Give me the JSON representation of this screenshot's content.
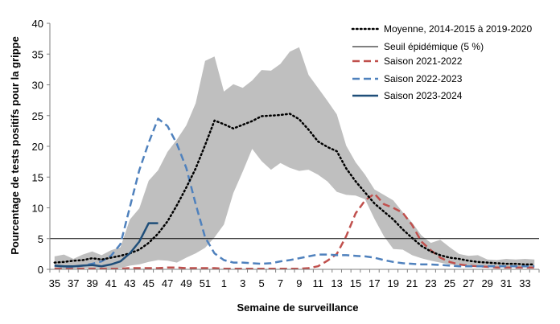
{
  "chart_data": {
    "type": "line",
    "xlabel": "Semaine de surveillance",
    "ylabel": "Pourcentage de tests positifs pour la grippe",
    "ylim": [
      0,
      40
    ],
    "yticks": [
      0,
      5,
      10,
      15,
      20,
      25,
      30,
      35,
      40
    ],
    "weeks": [
      35,
      36,
      37,
      38,
      39,
      40,
      41,
      42,
      43,
      44,
      45,
      46,
      47,
      48,
      49,
      50,
      51,
      52,
      1,
      2,
      3,
      4,
      5,
      6,
      7,
      8,
      9,
      10,
      11,
      12,
      13,
      14,
      15,
      16,
      17,
      18,
      19,
      20,
      21,
      22,
      23,
      24,
      25,
      26,
      27,
      28,
      29,
      30,
      31,
      32,
      33,
      34
    ],
    "x_tick_labels": [
      "35",
      "37",
      "39",
      "41",
      "43",
      "45",
      "47",
      "49",
      "51",
      "1",
      "3",
      "5",
      "7",
      "9",
      "11",
      "13",
      "15",
      "17",
      "19",
      "21",
      "23",
      "25",
      "27",
      "29",
      "31",
      "33"
    ],
    "threshold": 5,
    "range_band": {
      "max": [
        2.1,
        2.4,
        1.7,
        2.4,
        2.9,
        2.3,
        3.1,
        3.6,
        8.1,
        9.9,
        14.4,
        16.1,
        19.1,
        21.1,
        23.4,
        27.0,
        33.9,
        34.6,
        28.9,
        30.1,
        29.5,
        30.7,
        32.4,
        32.3,
        33.4,
        35.4,
        36.1,
        31.6,
        29.5,
        27.4,
        25.2,
        20.1,
        17.4,
        15.4,
        13.0,
        12.1,
        11.2,
        9.3,
        7.6,
        5.5,
        4.3,
        4.8,
        3.6,
        2.5,
        2.2,
        2.3,
        1.6,
        1.5,
        1.7,
        1.6,
        1.7,
        1.6
      ],
      "min": [
        0.1,
        0.1,
        0.1,
        0.2,
        0.2,
        0.1,
        0.1,
        0.2,
        0.6,
        0.8,
        1.2,
        1.5,
        1.4,
        1.1,
        1.9,
        2.6,
        3.5,
        5.2,
        7.3,
        12.4,
        15.9,
        19.6,
        17.6,
        16.2,
        17.3,
        16.5,
        16.0,
        16.2,
        15.4,
        14.3,
        12.6,
        12.1,
        12.0,
        11.4,
        8.2,
        5.4,
        3.3,
        3.2,
        2.3,
        1.8,
        1.4,
        1.1,
        0.8,
        0.6,
        0.5,
        0.4,
        0.4,
        0.3,
        0.4,
        0.3,
        0.3,
        0.3
      ]
    },
    "series": [
      {
        "name": "Moyenne, 2014-2015 à 2019-2020",
        "style": "dotted",
        "color": "#000000",
        "values": [
          1.1,
          1.2,
          1.4,
          1.5,
          1.8,
          1.6,
          1.9,
          2.2,
          2.6,
          3.2,
          4.3,
          5.8,
          7.8,
          10.4,
          13.3,
          16.4,
          20.2,
          24.2,
          23.6,
          22.9,
          23.5,
          24.1,
          24.9,
          25.0,
          25.1,
          25.3,
          24.4,
          22.7,
          20.8,
          19.9,
          19.2,
          16.4,
          14.3,
          12.5,
          10.7,
          9.4,
          8.1,
          6.5,
          5.1,
          3.8,
          2.9,
          2.3,
          1.9,
          1.7,
          1.4,
          1.2,
          1.1,
          1.0,
          0.9,
          0.9,
          0.8,
          0.8
        ]
      },
      {
        "name": "Seuil épidémique (5 %)",
        "style": "solid-thin",
        "color": "#000000",
        "values": [
          5,
          5,
          5,
          5,
          5,
          5,
          5,
          5,
          5,
          5,
          5,
          5,
          5,
          5,
          5,
          5,
          5,
          5,
          5,
          5,
          5,
          5,
          5,
          5,
          5,
          5,
          5,
          5,
          5,
          5,
          5,
          5,
          5,
          5,
          5,
          5,
          5,
          5,
          5,
          5,
          5,
          5,
          5,
          5,
          5,
          5,
          5,
          5,
          5,
          5,
          5,
          5
        ]
      },
      {
        "name": "Saison 2021-2022",
        "style": "dashed",
        "color": "#C0504D",
        "values": [
          0.1,
          0.1,
          0.1,
          0.1,
          0.1,
          0.1,
          0.1,
          0.1,
          0.2,
          0.2,
          0.2,
          0.2,
          0.3,
          0.3,
          0.2,
          0.2,
          0.2,
          0.2,
          0.1,
          0.1,
          0.1,
          0.1,
          0.1,
          0.1,
          0.1,
          0.1,
          0.1,
          0.2,
          0.5,
          1.4,
          2.5,
          5.4,
          9.1,
          11.2,
          12.3,
          10.6,
          10.0,
          9.2,
          7.2,
          4.5,
          3.1,
          1.9,
          1.2,
          0.8,
          0.6,
          0.5,
          0.4,
          0.3,
          0.3,
          0.3,
          0.3,
          0.3
        ]
      },
      {
        "name": "Saison 2022-2023",
        "style": "dashed",
        "color": "#4F81BD",
        "values": [
          0.6,
          0.4,
          0.4,
          0.6,
          0.9,
          1.3,
          2.2,
          4.1,
          10.1,
          16.1,
          20.6,
          24.5,
          23.3,
          20.4,
          16.5,
          10.6,
          5.2,
          2.6,
          1.5,
          1.1,
          1.1,
          1.0,
          0.9,
          1.0,
          1.3,
          1.5,
          1.8,
          2.1,
          2.4,
          2.4,
          2.3,
          2.3,
          2.2,
          2.1,
          1.9,
          1.5,
          1.2,
          1.0,
          0.9,
          0.8,
          0.8,
          0.7,
          0.6,
          0.5,
          0.5,
          0.5,
          0.5,
          0.5,
          0.5,
          0.5,
          0.5,
          0.5
        ]
      },
      {
        "name": "Saison 2023-2024",
        "style": "solid",
        "color": "#1F4E79",
        "values": [
          0.6,
          0.5,
          0.5,
          0.6,
          0.7,
          0.5,
          0.8,
          1.3,
          2.6,
          4.5,
          7.5,
          7.5
        ]
      }
    ],
    "legend_position": "top-right",
    "grid": false
  }
}
